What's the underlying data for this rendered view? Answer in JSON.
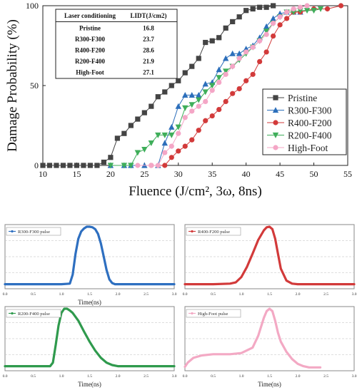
{
  "chart_data": [
    {
      "type": "line",
      "xlabel": "Fluence (J/cm², 3ω, 8ns)",
      "ylabel": "Damage Probability (%)",
      "xlim": [
        10,
        55
      ],
      "ylim": [
        0,
        100
      ],
      "xticks": [
        10,
        15,
        20,
        25,
        30,
        35,
        40,
        45,
        50,
        55
      ],
      "yticks": [
        0,
        50,
        100
      ],
      "legend_position": "bottom-right",
      "table": {
        "headers": [
          "Laser conditioning",
          "LIDT(J/cm2)"
        ],
        "rows": [
          [
            "Pristine",
            "16.8"
          ],
          [
            "R300-F300",
            "23.7"
          ],
          [
            "R400-F200",
            "28.6"
          ],
          [
            "R200-F400",
            "21.9"
          ],
          [
            "High-Foot",
            "27.1"
          ]
        ]
      },
      "series": [
        {
          "name": "Pristine",
          "color": "#444444",
          "marker": "square",
          "x": [
            10,
            11,
            12,
            13,
            14,
            15,
            16,
            17,
            18,
            19,
            20,
            21,
            22,
            23,
            24,
            25,
            26,
            27,
            28,
            29,
            30,
            31,
            32,
            33,
            34,
            35,
            36,
            37,
            38,
            39,
            40,
            41,
            42,
            43,
            44
          ],
          "y": [
            0,
            0,
            0,
            0,
            0,
            0,
            0,
            0,
            0,
            2,
            5,
            17,
            20,
            25,
            29,
            33,
            37,
            43,
            46,
            50,
            53,
            58,
            62,
            67,
            77,
            78,
            80,
            86,
            90,
            93,
            97,
            98,
            99,
            99,
            100
          ]
        },
        {
          "name": "R300-F300",
          "color": "#2c6fbb",
          "marker": "triangle-up",
          "x": [
            20,
            22,
            23,
            25,
            27,
            28,
            29,
            30,
            31,
            32,
            33,
            34,
            35,
            36,
            37,
            38,
            39,
            40,
            41,
            42,
            43,
            44,
            45,
            46,
            47,
            48
          ],
          "y": [
            0,
            0,
            0,
            0,
            0,
            14,
            24,
            37,
            44,
            44,
            44,
            51,
            52,
            60,
            67,
            70,
            70,
            73,
            75,
            80,
            87,
            92,
            95,
            96,
            96,
            96
          ]
        },
        {
          "name": "R400-F200",
          "color": "#d23a3a",
          "marker": "circle",
          "x": [
            26,
            28,
            29,
            30,
            31,
            32,
            33,
            34,
            35,
            36,
            37,
            38,
            39,
            40,
            41,
            42,
            43,
            44,
            45,
            46,
            47,
            48,
            50,
            52,
            54
          ],
          "y": [
            0,
            0,
            5,
            9,
            12,
            16,
            22,
            28,
            31,
            35,
            40,
            45,
            48,
            53,
            57,
            65,
            71,
            81,
            88,
            92,
            96,
            96,
            98,
            98,
            100
          ]
        },
        {
          "name": "R200-F400",
          "color": "#3fae5a",
          "marker": "triangle-down",
          "x": [
            20,
            22,
            23,
            24,
            25,
            26,
            27,
            28,
            29,
            30,
            31,
            32,
            33,
            34,
            35,
            36,
            37,
            38,
            39,
            40,
            41,
            42,
            43,
            44,
            45,
            46,
            47,
            48,
            49,
            50,
            51
          ],
          "y": [
            0,
            0,
            0,
            8,
            10,
            14,
            19,
            19,
            19,
            24,
            36,
            38,
            41,
            46,
            50,
            55,
            59,
            62,
            66,
            70,
            74,
            78,
            84,
            89,
            93,
            96,
            96,
            97,
            97,
            97,
            98
          ]
        },
        {
          "name": "High-Foot",
          "color": "#f4a6c6",
          "marker": "circle",
          "x": [
            24,
            26,
            27,
            28,
            29,
            30,
            31,
            32,
            33,
            34,
            35,
            36,
            37,
            38,
            39,
            40,
            41,
            42,
            43,
            44,
            45,
            46,
            47,
            48,
            49
          ],
          "y": [
            0,
            0,
            0,
            8,
            12,
            20,
            30,
            34,
            37,
            40,
            47,
            52,
            57,
            62,
            67,
            71,
            74,
            78,
            82,
            89,
            93,
            96,
            98,
            99,
            100
          ]
        }
      ]
    },
    {
      "type": "line",
      "legend": "R300-F300 pulse",
      "color": "#2e6fc0",
      "xlabel": "Time(ns)",
      "xlim": [
        0,
        3
      ],
      "xticks": [
        "0.0",
        "0.5",
        "1.0",
        "1.5",
        "2.0",
        "2.5",
        "3.0"
      ],
      "ylim": [
        0,
        1
      ],
      "x": [
        0.0,
        0.5,
        1.0,
        1.15,
        1.2,
        1.25,
        1.3,
        1.35,
        1.4,
        1.45,
        1.5,
        1.55,
        1.6,
        1.65,
        1.7,
        1.75,
        1.8,
        1.85,
        1.9,
        1.95,
        2.0,
        2.5,
        3.0
      ],
      "y": [
        0.04,
        0.04,
        0.04,
        0.05,
        0.2,
        0.55,
        0.8,
        0.92,
        0.97,
        1.0,
        1.0,
        0.99,
        0.96,
        0.88,
        0.72,
        0.5,
        0.28,
        0.12,
        0.06,
        0.04,
        0.04,
        0.04,
        0.04
      ]
    },
    {
      "type": "line",
      "legend": "R400-F200 pulse",
      "color": "#d23a3a",
      "xlabel": "",
      "xlim": [
        0,
        3
      ],
      "xticks": [
        "0.0",
        "0.5",
        "1.0",
        "1.5",
        "2.0",
        "2.5",
        "3.0"
      ],
      "ylim": [
        0,
        1
      ],
      "x": [
        0.0,
        0.5,
        0.8,
        0.9,
        1.0,
        1.1,
        1.2,
        1.3,
        1.4,
        1.45,
        1.5,
        1.55,
        1.6,
        1.65,
        1.7,
        1.8,
        1.9,
        2.0,
        2.5,
        3.0
      ],
      "y": [
        0.04,
        0.04,
        0.05,
        0.07,
        0.16,
        0.33,
        0.55,
        0.78,
        0.94,
        0.99,
        1.0,
        0.96,
        0.8,
        0.55,
        0.3,
        0.1,
        0.05,
        0.04,
        0.04,
        0.04
      ]
    },
    {
      "type": "line",
      "legend": "R200-F400 pulse",
      "color": "#2f9a4d",
      "xlabel": "Time(ns)",
      "xlim": [
        0,
        3
      ],
      "xticks": [
        "0.0",
        "0.5",
        "1.0",
        "1.5",
        "2.0",
        "2.5",
        "3.0"
      ],
      "ylim": [
        0,
        1
      ],
      "x": [
        0.0,
        0.5,
        0.8,
        0.85,
        0.9,
        0.95,
        1.0,
        1.05,
        1.1,
        1.15,
        1.2,
        1.3,
        1.4,
        1.5,
        1.6,
        1.7,
        1.8,
        1.9,
        2.0,
        2.5,
        3.0
      ],
      "y": [
        0.04,
        0.04,
        0.04,
        0.1,
        0.4,
        0.72,
        0.93,
        1.0,
        1.0,
        0.97,
        0.93,
        0.8,
        0.62,
        0.45,
        0.3,
        0.18,
        0.1,
        0.06,
        0.04,
        0.04,
        0.04
      ]
    },
    {
      "type": "line",
      "legend": "High-Foot pulse",
      "color": "#f3a9c4",
      "xlabel": "Time(ns)",
      "xlim": [
        0,
        3
      ],
      "xticks": [
        "0.0",
        "0.5",
        "1.0",
        "1.5",
        "2.0",
        "2.5",
        "3.0"
      ],
      "ylim": [
        0,
        1
      ],
      "x": [
        0.0,
        0.05,
        0.15,
        0.3,
        0.5,
        0.8,
        1.0,
        1.2,
        1.3,
        1.4,
        1.45,
        1.5,
        1.55,
        1.6,
        1.65,
        1.7,
        1.8,
        1.9,
        2.0,
        2.1,
        2.2,
        2.3,
        2.4
      ],
      "y": [
        0.03,
        0.1,
        0.18,
        0.22,
        0.24,
        0.24,
        0.26,
        0.35,
        0.55,
        0.85,
        0.96,
        1.0,
        0.96,
        0.8,
        0.6,
        0.45,
        0.28,
        0.16,
        0.08,
        0.04,
        0.02,
        0.02,
        0.02
      ]
    }
  ]
}
